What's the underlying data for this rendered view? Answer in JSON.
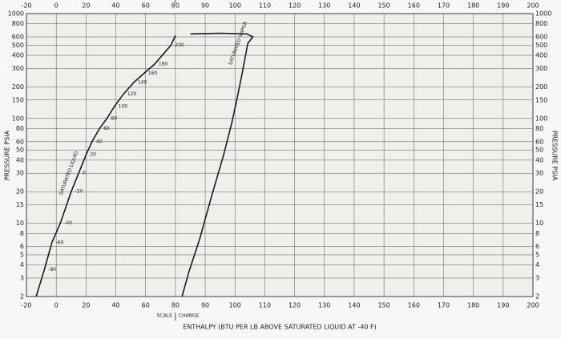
{
  "chart_data": {
    "type": "line",
    "x_label": "ENTHALPY (BTU PER LB ABOVE SATURATED LIQUID AT -40 F)",
    "y_label": "PRESSURE PSIA",
    "scale_change": [
      "SCALE",
      "CHANGE"
    ],
    "xticks": [
      -20,
      0,
      20,
      40,
      60,
      80,
      90,
      100,
      110,
      120,
      130,
      140,
      150,
      160,
      170,
      180,
      190,
      200
    ],
    "xlim": [
      -20,
      200
    ],
    "ylim": [
      2,
      1000
    ],
    "yticks": [
      2,
      3,
      4,
      5,
      6,
      8,
      10,
      15,
      20,
      30,
      40,
      50,
      60,
      80,
      100,
      150,
      200,
      300,
      400,
      500,
      600,
      800,
      1000
    ],
    "yscale": "log",
    "grid": true,
    "series": [
      {
        "name": "SATURATED LIQUID",
        "color": "#1a1a1a",
        "x": [
          -13.5,
          -8,
          -3,
          2.7,
          10,
          15,
          20,
          24,
          29,
          34,
          39,
          45,
          52,
          59,
          66,
          77,
          80
        ],
        "values": [
          2,
          3.6,
          6.5,
          10,
          20,
          30,
          45,
          60,
          80,
          100,
          130,
          170,
          220,
          270,
          330,
          500,
          620
        ],
        "temperature_labels": [
          null,
          "-80",
          "-60",
          "-40",
          "-20",
          "0",
          "20",
          "40",
          "60",
          "80",
          "100",
          "120",
          "140",
          "160",
          "180",
          "200",
          null
        ]
      },
      {
        "name": "SATURATED VAPOR",
        "color": "#1a1a1a",
        "x": [
          85,
          95,
          104,
          106,
          104.3,
          102.4,
          100.8,
          98.9,
          96.2,
          92.1,
          88.1,
          84.6,
          82.2
        ],
        "values": [
          640,
          650,
          640,
          600,
          520,
          270,
          160,
          90,
          45,
          18,
          7,
          3.5,
          2
        ]
      }
    ]
  }
}
